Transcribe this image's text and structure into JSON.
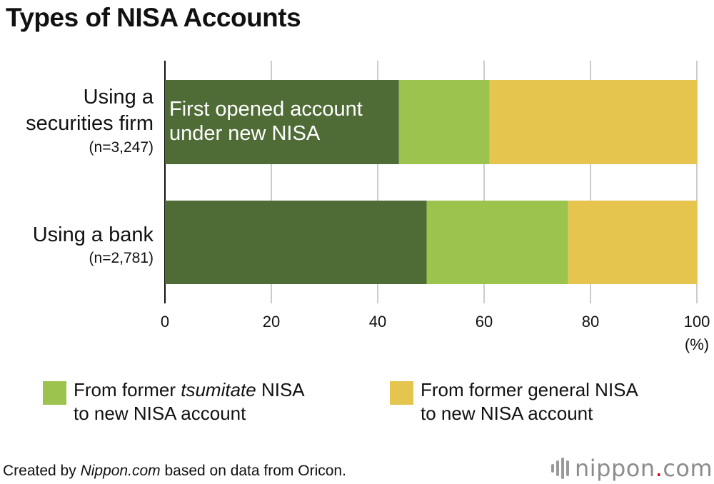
{
  "title": "Types of NISA Accounts",
  "chart_data": {
    "type": "bar",
    "orientation": "horizontal",
    "stacked": true,
    "categories": [
      {
        "lines": [
          "Using a",
          "securities firm"
        ],
        "n": "(n=3,247)"
      },
      {
        "lines": [
          "Using a bank"
        ],
        "n": "(n=2,781)"
      }
    ],
    "series": [
      {
        "name": "First opened account under new NISA",
        "label_lines": [
          "First opened account",
          "under new NISA"
        ],
        "color": "#4f6b36",
        "values": [
          44,
          49.2
        ]
      },
      {
        "name": "From former tsumitate NISA to new NISA account",
        "color": "#9cc34e",
        "values": [
          17,
          26.6
        ]
      },
      {
        "name": "From former general NISA to new NISA account",
        "color": "#e6c54e",
        "values": [
          39,
          24.2
        ]
      }
    ],
    "xlim": [
      0,
      100
    ],
    "xticks": [
      "0",
      "20",
      "40",
      "60",
      "80",
      "100"
    ],
    "xunit": "(%)",
    "grid": true
  },
  "legend": [
    {
      "pre": "From former ",
      "em": "tsumitate",
      "post": " NISA",
      "line2": "to new NISA account",
      "color": "#9cc34e"
    },
    {
      "pre": "From former general NISA",
      "em": "",
      "post": "",
      "line2": "to new NISA account",
      "color": "#e6c54e"
    }
  ],
  "footer": {
    "pre": "Created by ",
    "em": "Nippon.com",
    "post": " based on data from Oricon."
  },
  "logo": {
    "name": "nippon",
    "dot": ".",
    "tld": "com"
  }
}
